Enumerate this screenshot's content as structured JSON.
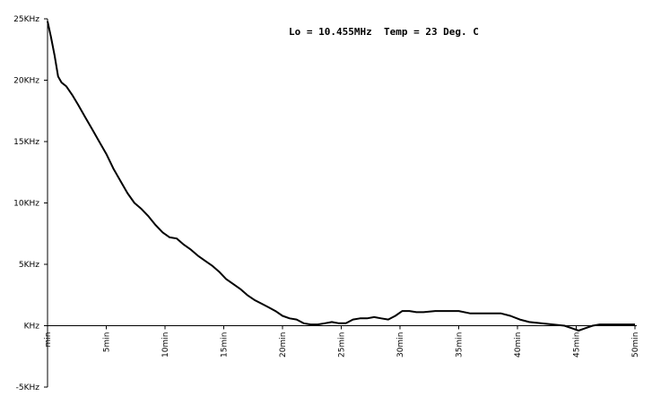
{
  "chart_data": {
    "type": "line",
    "title": "Lo = 10.455MHz  Temp = 23 Deg. C",
    "xlabel": "",
    "ylabel": "",
    "xlim": [
      0,
      50
    ],
    "ylim": [
      -5,
      25
    ],
    "grid": false,
    "y_ticks": [
      {
        "value": 25,
        "label": "25KHz"
      },
      {
        "value": 20,
        "label": "20KHz"
      },
      {
        "value": 15,
        "label": "15KHz"
      },
      {
        "value": 10,
        "label": "10KHz"
      },
      {
        "value": 5,
        "label": "5KHz"
      },
      {
        "value": 0,
        "label": "KHz"
      },
      {
        "value": -5,
        "label": "-5KHz"
      }
    ],
    "x_ticks": [
      {
        "value": 0,
        "label": "min"
      },
      {
        "value": 5,
        "label": "5min"
      },
      {
        "value": 10,
        "label": "10min"
      },
      {
        "value": 15,
        "label": "15min"
      },
      {
        "value": 20,
        "label": "20min"
      },
      {
        "value": 25,
        "label": "25min"
      },
      {
        "value": 30,
        "label": "30min"
      },
      {
        "value": 35,
        "label": "35min"
      },
      {
        "value": 40,
        "label": "40min"
      },
      {
        "value": 45,
        "label": "45min"
      },
      {
        "value": 50,
        "label": "50min"
      }
    ],
    "series": [
      {
        "color": "#000000",
        "x": [
          0,
          0.3,
          0.6,
          0.9,
          1.2,
          1.6,
          2.1,
          2.6,
          3.2,
          3.8,
          4.4,
          5.0,
          5.6,
          6.2,
          6.8,
          7.4,
          8.0,
          8.6,
          9.2,
          9.8,
          10.4,
          11.0,
          11.6,
          12.2,
          12.8,
          13.4,
          14.0,
          14.6,
          15.2,
          15.8,
          16.4,
          17.0,
          17.6,
          18.2,
          18.8,
          19.4,
          20.0,
          20.6,
          21.2,
          21.8,
          22.4,
          23.0,
          23.6,
          24.2,
          24.8,
          25.4,
          26.0,
          26.6,
          27.2,
          27.8,
          28.4,
          29.0,
          29.6,
          30.2,
          30.8,
          31.4,
          32.0,
          33.0,
          34.0,
          35.0,
          36.0,
          37.0,
          38.0,
          38.6,
          39.4,
          40.2,
          41.0,
          42.0,
          43.0,
          44.0,
          44.6,
          45.2,
          45.8,
          46.4,
          47.0,
          48.0,
          49.0,
          50.0
        ],
        "y": [
          24.8,
          23.5,
          22.0,
          20.3,
          19.8,
          19.5,
          18.8,
          18.0,
          17.0,
          16.0,
          15.0,
          14.0,
          12.8,
          11.8,
          10.8,
          10.0,
          9.5,
          8.9,
          8.2,
          7.6,
          7.2,
          7.1,
          6.6,
          6.2,
          5.7,
          5.3,
          4.9,
          4.4,
          3.8,
          3.4,
          3.0,
          2.5,
          2.1,
          1.8,
          1.5,
          1.2,
          0.8,
          0.6,
          0.5,
          0.2,
          0.1,
          0.1,
          0.2,
          0.3,
          0.2,
          0.2,
          0.5,
          0.6,
          0.6,
          0.7,
          0.6,
          0.5,
          0.8,
          1.2,
          1.2,
          1.1,
          1.1,
          1.2,
          1.2,
          1.2,
          1.0,
          1.0,
          1.0,
          1.0,
          0.8,
          0.5,
          0.3,
          0.2,
          0.1,
          0.0,
          -0.2,
          -0.4,
          -0.2,
          0.0,
          0.1,
          0.1,
          0.1,
          0.1
        ]
      }
    ]
  }
}
